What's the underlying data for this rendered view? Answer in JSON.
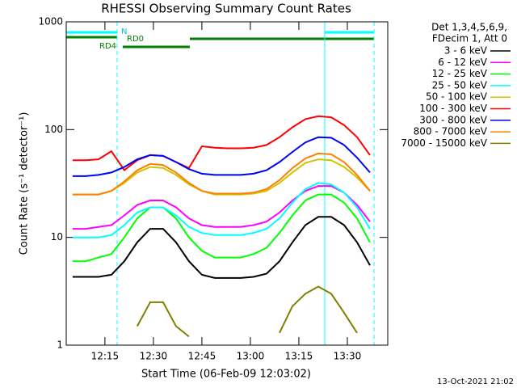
{
  "chart_data": {
    "type": "line",
    "title": "RHESSI Observing Summary Count Rates",
    "x_label": "Start Time (06-Feb-09 12:03:02)",
    "y_label": "Count Rate (s⁻¹ detector⁻¹)",
    "legend_header": [
      "Det 1,3,4,5,6,9,",
      "FDecim 1, Att 0"
    ],
    "annotations": [
      "N",
      "RD0",
      "RD4"
    ],
    "timestamp": "13-Oct-2021 21:02",
    "log_y": true,
    "grid": false,
    "xlim": [
      "12:03:02",
      "13:42:30"
    ],
    "xticks": [
      "12:15",
      "12:30",
      "12:45",
      "13:00",
      "13:15",
      "13:30"
    ],
    "ylim": [
      1,
      1000
    ],
    "yticks": [
      1,
      10,
      100,
      1000
    ],
    "x": [
      "12:05",
      "12:09",
      "12:13",
      "12:17",
      "12:21",
      "12:25",
      "12:29",
      "12:33",
      "12:37",
      "12:41",
      "12:45",
      "12:49",
      "12:53",
      "12:57",
      "13:01",
      "13:05",
      "13:09",
      "13:13",
      "13:17",
      "13:21",
      "13:25",
      "13:29",
      "13:33",
      "13:37"
    ],
    "series": [
      {
        "name": "3 - 6 keV",
        "color": "#000000",
        "values": [
          4.3,
          4.3,
          4.3,
          4.5,
          6,
          9,
          12,
          12,
          9,
          6,
          4.5,
          4.2,
          4.2,
          4.2,
          4.3,
          4.6,
          6,
          9,
          13,
          15.5,
          15.5,
          13,
          9,
          5.5
        ]
      },
      {
        "name": "6 - 12 keV",
        "color": "#ff00ff",
        "values": [
          12,
          12,
          12.5,
          13,
          16,
          20,
          22,
          22,
          19,
          15,
          13,
          12.5,
          12.5,
          12.5,
          13,
          14,
          17,
          22,
          27,
          30,
          30,
          26,
          20,
          14
        ]
      },
      {
        "name": "12 - 25 keV",
        "color": "#00ff00",
        "values": [
          6,
          6,
          6.5,
          7,
          10,
          15,
          19,
          19,
          15,
          10,
          7.5,
          6.5,
          6.5,
          6.5,
          7,
          8,
          11,
          16,
          22,
          25,
          25,
          21,
          15,
          9
        ]
      },
      {
        "name": "25 - 50 keV",
        "color": "#00ffff",
        "values": [
          10,
          10,
          10,
          10.5,
          13,
          17,
          19,
          19,
          16,
          12.5,
          11,
          10.5,
          10.5,
          10.5,
          11,
          12,
          15,
          21,
          28,
          32,
          31,
          26,
          19,
          12
        ]
      },
      {
        "name": "50 - 100 keV",
        "color": "#d2c300",
        "values": [
          25,
          25,
          25,
          27,
          32,
          40,
          45,
          44,
          38,
          31,
          27,
          25,
          25,
          25,
          25.5,
          27,
          32,
          40,
          49,
          53,
          52,
          45,
          36,
          27
        ]
      },
      {
        "name": "100 - 300 keV",
        "color": "#ff0000",
        "values": [
          52,
          52,
          53,
          63,
          42,
          52,
          58,
          57,
          50,
          44,
          70,
          68,
          67,
          67,
          68,
          72,
          85,
          105,
          125,
          133,
          130,
          110,
          85,
          58
        ]
      },
      {
        "name": "300 - 800 keV",
        "color": "#0000ff",
        "values": [
          37,
          37,
          38,
          40,
          45,
          53,
          58,
          57,
          50,
          43,
          39,
          38,
          38,
          38,
          39,
          42,
          50,
          62,
          76,
          85,
          84,
          72,
          55,
          40
        ]
      },
      {
        "name": "800 - 7000 keV",
        "color": "#ff8000",
        "values": [
          25,
          25,
          25,
          27,
          33,
          42,
          48,
          47,
          40,
          32,
          27,
          25.5,
          25.5,
          25.5,
          26,
          28,
          34,
          44,
          54,
          60,
          59,
          50,
          38,
          27
        ]
      },
      {
        "name": "7000 - 15000 keV",
        "color": "#808000",
        "values": [
          null,
          null,
          null,
          null,
          null,
          1.5,
          2.5,
          2.5,
          1.5,
          1.2,
          null,
          null,
          null,
          null,
          null,
          null,
          1.3,
          2.3,
          3,
          3.5,
          3,
          2,
          1.3,
          null
        ]
      }
    ]
  }
}
